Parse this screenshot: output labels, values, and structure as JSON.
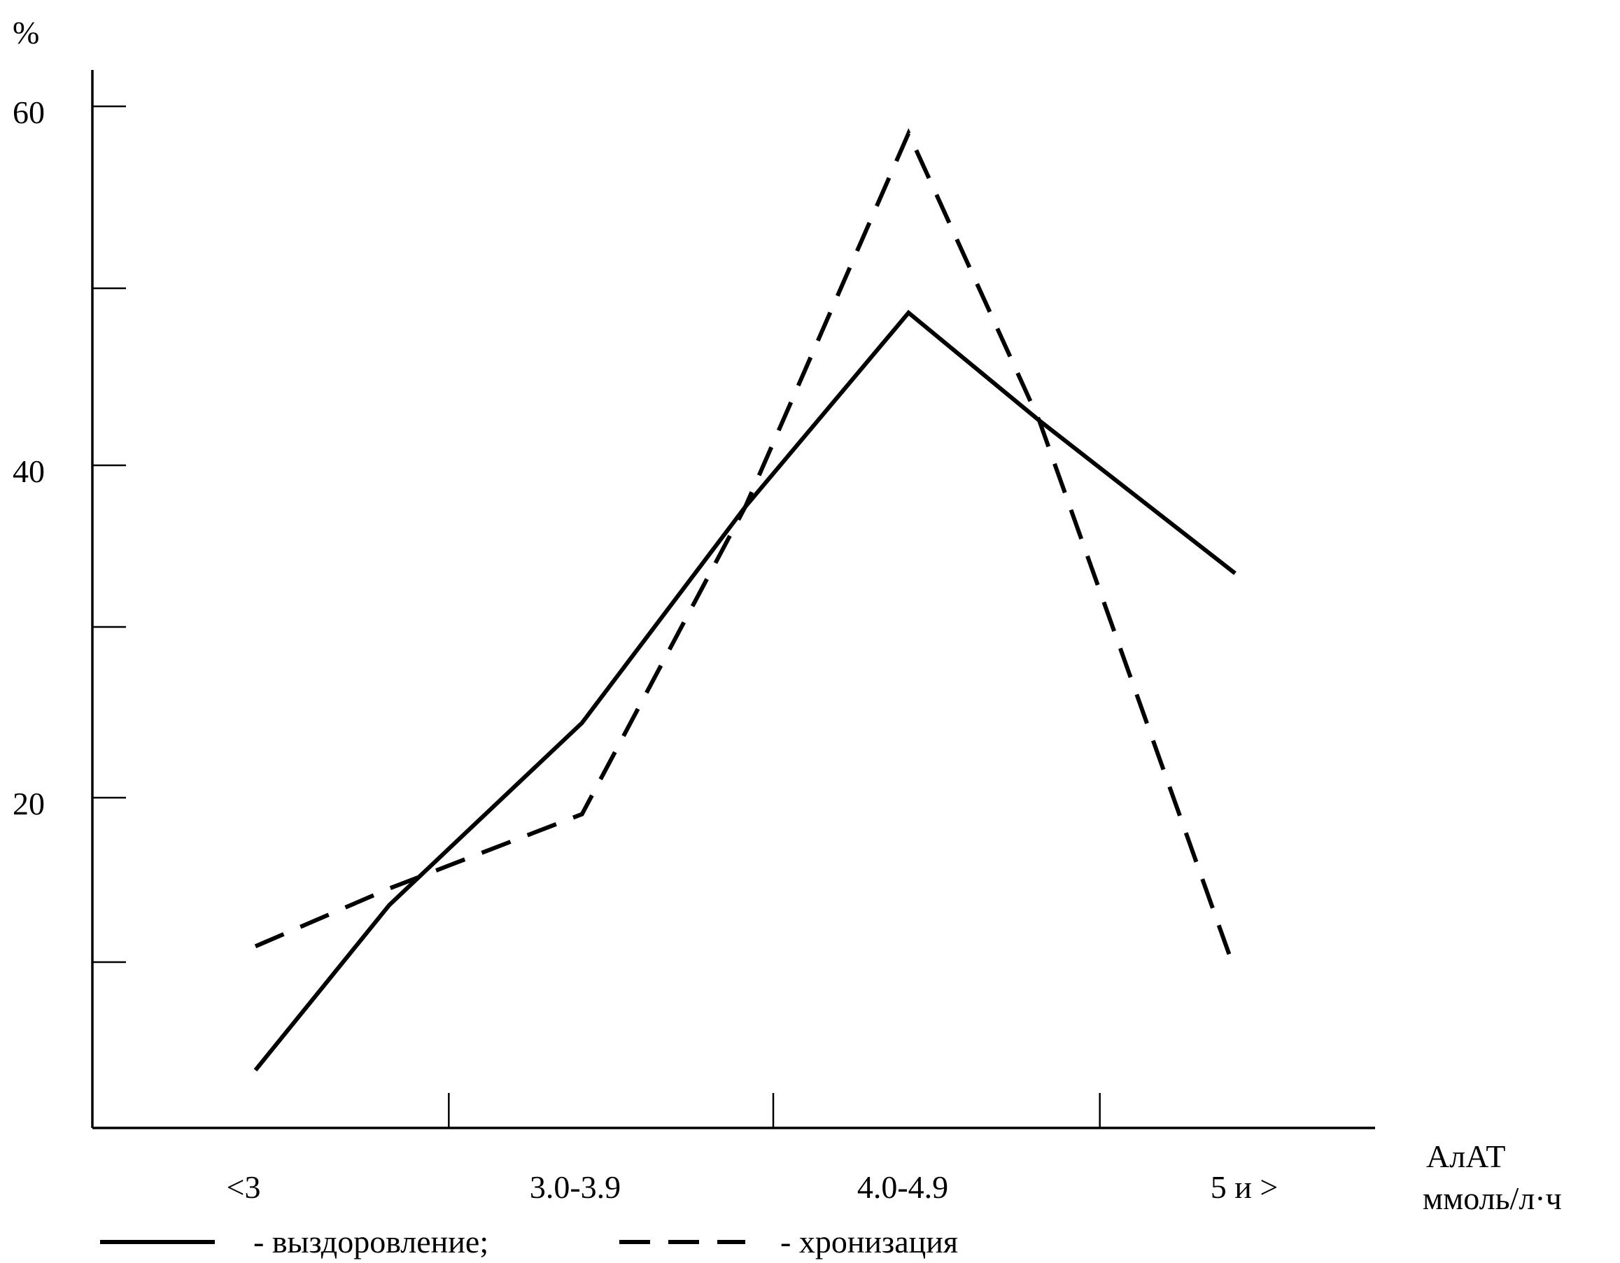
{
  "chart_data": {
    "type": "line",
    "yunit": "%",
    "y_ticks": [
      60,
      40,
      20
    ],
    "ylim": [
      0,
      60
    ],
    "categories": [
      "<3",
      "3.0-3.9",
      "4.0-4.9",
      "5 и >"
    ],
    "xlabel_line1": "АлАТ",
    "xlabel_line2": "ммоль/л·ч",
    "grid": false,
    "legend_placement": "bottom",
    "series": [
      {
        "name": "- выздоровление;",
        "style": "solid",
        "x": [
          0,
          0.41,
          1,
          1.5,
          2,
          2.4,
          3
        ],
        "values": [
          3.5,
          13.5,
          24.5,
          37.5,
          48.5,
          42.5,
          33.5
        ]
      },
      {
        "name": "- хронизация",
        "style": "dashed",
        "x": [
          0,
          0.41,
          1,
          1.5,
          2,
          2.4,
          3
        ],
        "values": [
          11,
          14.5,
          19,
          37.5,
          58.5,
          42.5,
          9.5
        ]
      }
    ]
  }
}
